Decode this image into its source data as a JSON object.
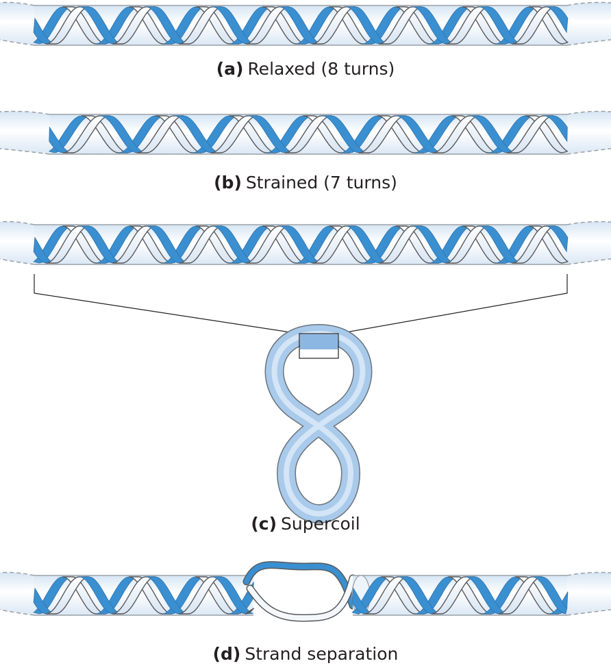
{
  "panels": [
    {
      "id": "a",
      "tag": "(a)",
      "label": "Relaxed (8 turns)"
    },
    {
      "id": "b",
      "tag": "(b)",
      "label": "Strained (7 turns)"
    },
    {
      "id": "c",
      "tag": "(c)",
      "label": "Supercoil"
    },
    {
      "id": "d",
      "tag": "(d)",
      "label": "Strand separation"
    }
  ],
  "colors": {
    "strand_front": "#f2f6fb",
    "strand_back": "#3a8fd0",
    "strand_outline": "#58595b",
    "cylinder_fill": "#e9f1fa",
    "cylinder_outline": "#9aa0a6",
    "supercoil_fill": "#a9caea",
    "supercoil_outline": "#6a737c",
    "connector_line": "#231f20"
  }
}
